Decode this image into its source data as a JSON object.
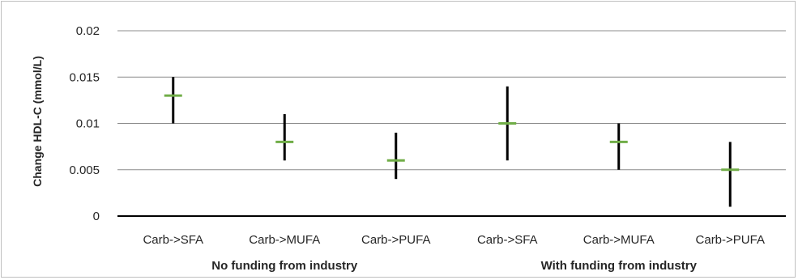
{
  "chart_data": {
    "type": "scatter",
    "title": "",
    "ylabel": "Change HDL-C (mmol/L)",
    "xlabel": "",
    "ylim": [
      0,
      0.02
    ],
    "yticks": [
      "0",
      "0.005",
      "0.01",
      "0.015",
      "0.02"
    ],
    "ytick_values": [
      0,
      0.005,
      0.01,
      0.015,
      0.02
    ],
    "grid": true,
    "categories": [
      "Carb->SFA",
      "Carb->MUFA",
      "Carb->PUFA",
      "Carb->SFA",
      "Carb->MUFA",
      "Carb->PUFA"
    ],
    "groups": [
      {
        "label": "No funding from industry",
        "categories": [
          0,
          1,
          2
        ]
      },
      {
        "label": "With funding from industry",
        "categories": [
          3,
          4,
          5
        ]
      }
    ],
    "estimate": [
      0.013,
      0.008,
      0.006,
      0.01,
      0.008,
      0.005
    ],
    "lower": [
      0.01,
      0.006,
      0.004,
      0.006,
      0.005,
      0.001
    ],
    "upper": [
      0.015,
      0.011,
      0.009,
      0.014,
      0.01,
      0.008
    ],
    "colors": {
      "marker": "#70ad47",
      "errorbar": "#000000",
      "gridline": "#8c8c8c",
      "axis": "#000000"
    }
  }
}
